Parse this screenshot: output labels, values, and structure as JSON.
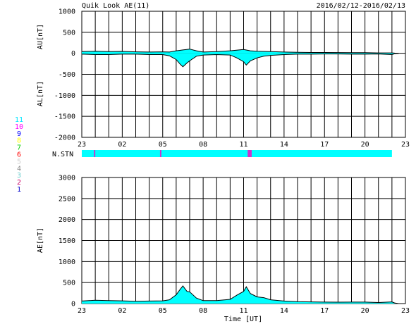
{
  "header": {
    "title": "Quik Look AE(11)",
    "date_range": "2016/02/12-2016/02/13"
  },
  "station_legend": {
    "label": "N.STN",
    "counts": [
      {
        "n": "11",
        "color": "#00e5ff"
      },
      {
        "n": "10",
        "color": "#ff00ff"
      },
      {
        "n": "9",
        "color": "#0000ff"
      },
      {
        "n": "8",
        "color": "#ffff00"
      },
      {
        "n": "7",
        "color": "#00cc00"
      },
      {
        "n": "6",
        "color": "#ff0000"
      },
      {
        "n": "5",
        "color": "#cccccc"
      },
      {
        "n": "4",
        "color": "#888888"
      },
      {
        "n": "3",
        "color": "#66cccc"
      },
      {
        "n": "2",
        "color": "#cc0066"
      },
      {
        "n": "1",
        "color": "#0000cc"
      }
    ]
  },
  "colors": {
    "fill": "#00ffff",
    "line": "#000000",
    "grid": "#000000",
    "nstn_main": "#00ffff",
    "nstn_marker": "#cc33cc"
  },
  "chart_data": [
    {
      "type": "area",
      "title": "AU/AL",
      "ylabel_top": "AU[nT]",
      "ylabel_bottom": "AL[nT]",
      "ylim": [
        -2000,
        1000
      ],
      "yticks": [
        1000,
        500,
        0,
        -500,
        -1000,
        -1500,
        -2000
      ],
      "xlim": [
        23,
        47
      ],
      "xticks": [
        23,
        26,
        29,
        32,
        35,
        38,
        41,
        44,
        47
      ],
      "xticklabels": [
        "23",
        "02",
        "05",
        "08",
        "11",
        "14",
        "17",
        "20",
        "23"
      ],
      "grid": true,
      "series": [
        {
          "name": "AU",
          "x": [
            23,
            24,
            25,
            26,
            27,
            28,
            29,
            29.5,
            30,
            30.5,
            31,
            31.5,
            32,
            33,
            34,
            35,
            35.5,
            36,
            36.5,
            37,
            38,
            39,
            40,
            41,
            42,
            43,
            44,
            45,
            46,
            46.2,
            46.5,
            46.8,
            47
          ],
          "values": [
            40,
            50,
            40,
            45,
            35,
            30,
            35,
            30,
            60,
            80,
            100,
            60,
            30,
            40,
            60,
            90,
            60,
            50,
            45,
            40,
            30,
            25,
            20,
            20,
            18,
            15,
            15,
            10,
            10,
            5,
            0,
            null,
            null
          ]
        },
        {
          "name": "AL",
          "x": [
            23,
            24,
            25,
            26,
            27,
            28,
            29,
            29.5,
            30,
            30.3,
            30.5,
            30.8,
            31,
            31.5,
            32,
            33,
            34,
            34.5,
            35,
            35.2,
            35.5,
            36,
            36.5,
            37,
            38,
            39,
            40,
            41,
            42,
            43,
            44,
            45,
            46,
            46.2,
            46.5,
            46.8,
            47
          ],
          "values": [
            -20,
            -30,
            -30,
            -20,
            -20,
            -30,
            -30,
            -60,
            -150,
            -260,
            -320,
            -230,
            -180,
            -70,
            -40,
            -30,
            -40,
            -110,
            -200,
            -280,
            -180,
            -110,
            -70,
            -50,
            -30,
            -20,
            -20,
            -15,
            -15,
            -20,
            -20,
            -15,
            -30,
            -10,
            0,
            null,
            null
          ]
        }
      ]
    },
    {
      "type": "area",
      "title": "AE",
      "ylabel": "AE[nT]",
      "xlabel": "Time [UT]",
      "ylim": [
        0,
        3000
      ],
      "yticks": [
        3000,
        2500,
        2000,
        1500,
        1000,
        500,
        0
      ],
      "xlim": [
        23,
        47
      ],
      "xticks": [
        23,
        26,
        29,
        32,
        35,
        38,
        41,
        44,
        47
      ],
      "xticklabels": [
        "23",
        "02",
        "05",
        "08",
        "11",
        "14",
        "17",
        "20",
        "23"
      ],
      "grid": true,
      "series": [
        {
          "name": "AE",
          "x": [
            23,
            24,
            25,
            26,
            27,
            28,
            29,
            29.5,
            30,
            30.3,
            30.5,
            30.8,
            31,
            31.5,
            32,
            33,
            34,
            34.5,
            35,
            35.2,
            35.5,
            36,
            36.5,
            37,
            38,
            39,
            40,
            41,
            42,
            43,
            44,
            45,
            46,
            46.2,
            46.5,
            46.8,
            47
          ],
          "values": [
            60,
            80,
            70,
            65,
            55,
            60,
            65,
            90,
            210,
            340,
            420,
            290,
            280,
            130,
            70,
            70,
            100,
            200,
            290,
            400,
            240,
            160,
            140,
            90,
            60,
            45,
            40,
            35,
            33,
            35,
            35,
            25,
            40,
            15,
            0,
            null,
            null
          ]
        }
      ]
    },
    {
      "type": "bar",
      "title": "N.STN",
      "xlim": [
        23,
        47
      ],
      "segments": [
        {
          "from": 23.0,
          "to": 46.0,
          "n": 11
        },
        {
          "from": 23.9,
          "to": 24.0,
          "n": 10
        },
        {
          "from": 28.8,
          "to": 28.9,
          "n": 10
        },
        {
          "from": 35.3,
          "to": 35.6,
          "n": 10
        }
      ]
    }
  ]
}
